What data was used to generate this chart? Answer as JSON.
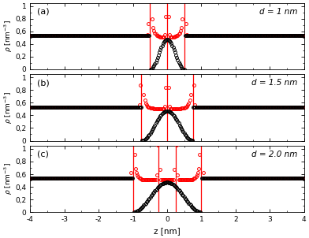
{
  "panels": [
    {
      "label": "(a)",
      "d_label": "d = 1 nm",
      "half": 0.5,
      "charge_locs": [
        -0.5,
        0.0,
        0.5
      ]
    },
    {
      "label": "(b)",
      "d_label": "d = 1.5 nm",
      "half": 0.75,
      "charge_locs": [
        -0.75,
        0.0,
        0.75
      ]
    },
    {
      "label": "(c)",
      "d_label": "d = 2.0 nm",
      "half": 1.0,
      "charge_locs": [
        -1.0,
        -0.25,
        0.25,
        1.0
      ]
    }
  ],
  "bulk": 0.534,
  "xlim": [
    -4,
    4
  ],
  "ylim": [
    0,
    1.05
  ],
  "yticks": [
    0,
    0.2,
    0.4,
    0.6,
    0.8,
    1.0
  ],
  "ytick_labels": [
    "0",
    "0,2",
    "0,4",
    "0,6",
    "0,8",
    "1"
  ],
  "xticks": [
    -4,
    -3,
    -2,
    -1,
    0,
    1,
    2,
    3,
    4
  ],
  "color_red": "#ff0000",
  "color_black": "#000000",
  "markersize": 2.8,
  "background": "#ffffff",
  "n_samples": 300
}
